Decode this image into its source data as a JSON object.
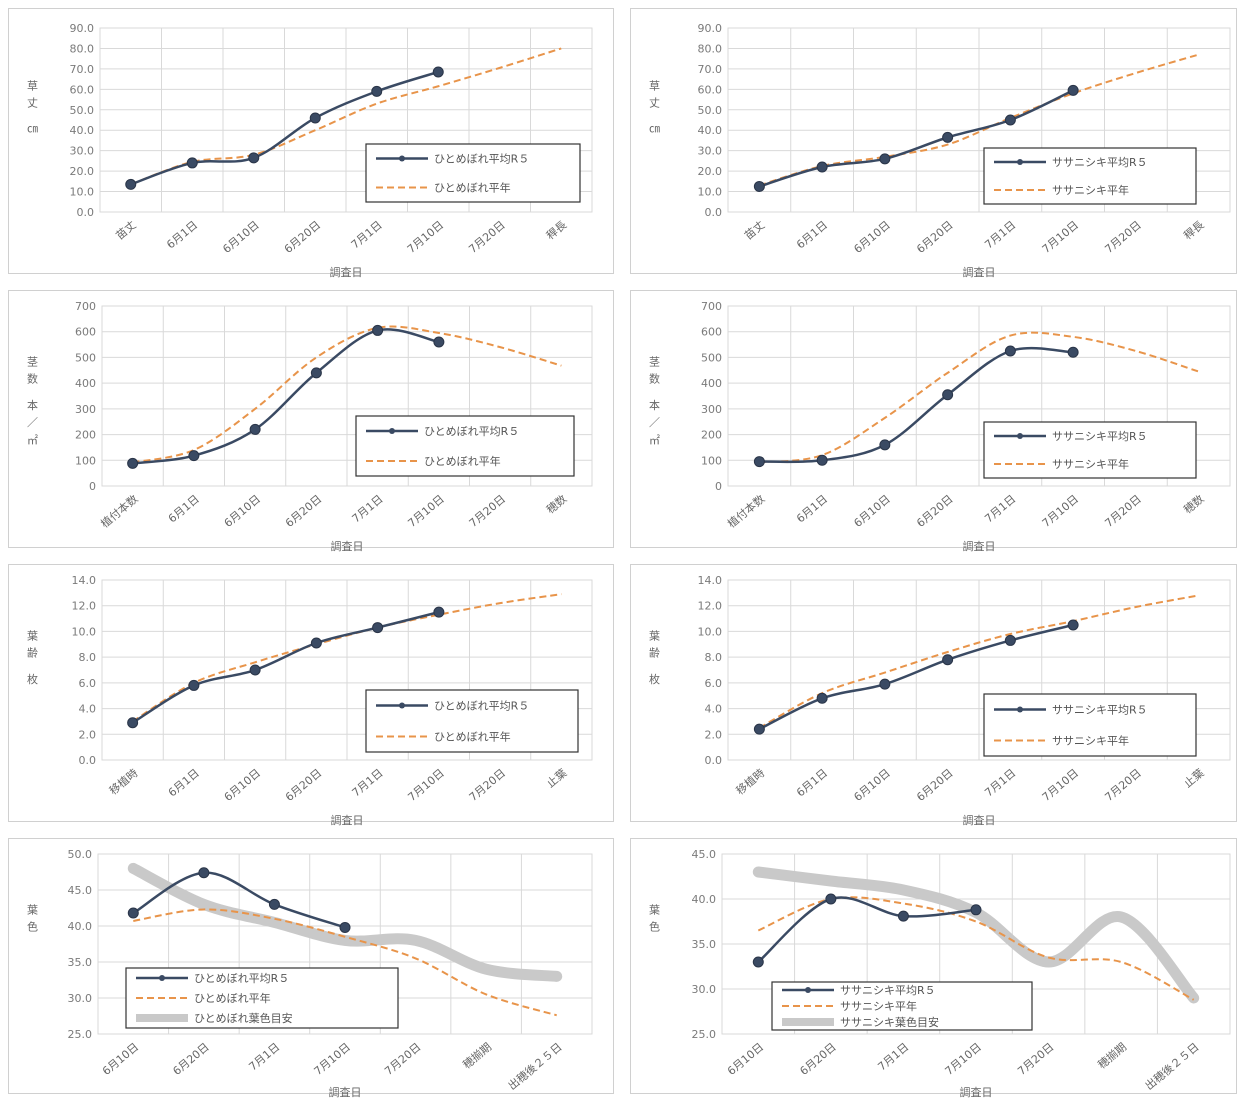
{
  "colors": {
    "measured": "#3a4a63",
    "normal": "#e8944a",
    "target": "#c9c9c9",
    "grid": "#d9d9d9",
    "axis_text": "#7a7a7a",
    "panel_border": "#d0d0d0"
  },
  "chart_data": [
    {
      "type": "line",
      "ylabel": "草丈 ㎝",
      "xlabel": "調査日",
      "categories": [
        "苗丈",
        "6月1日",
        "6月10日",
        "6月20日",
        "7月1日",
        "7月10日",
        "7月20日",
        "稈長"
      ],
      "ylim": [
        0,
        90
      ],
      "yticks": [
        "0.0",
        "10.0",
        "20.0",
        "30.0",
        "40.0",
        "50.0",
        "60.0",
        "70.0",
        "80.0",
        "90.0"
      ],
      "grid": true,
      "legend_position": "center-right",
      "series": [
        {
          "name": "ひとめぼれ平均R５",
          "style": "measured",
          "values": [
            13.5,
            24.0,
            26.5,
            46.0,
            59.0,
            68.5,
            null,
            null
          ]
        },
        {
          "name": "ひとめぼれ平年",
          "style": "normal",
          "values": [
            13.5,
            24.5,
            28.0,
            40.0,
            53.0,
            61.5,
            70.5,
            80.0
          ]
        }
      ]
    },
    {
      "type": "line",
      "ylabel": "草丈 ㎝",
      "xlabel": "調査日",
      "categories": [
        "苗丈",
        "6月1日",
        "6月10日",
        "6月20日",
        "7月1日",
        "7月10日",
        "7月20日",
        "稈長"
      ],
      "ylim": [
        0,
        90
      ],
      "yticks": [
        "0.0",
        "10.0",
        "20.0",
        "30.0",
        "40.0",
        "50.0",
        "60.0",
        "70.0",
        "80.0",
        "90.0"
      ],
      "grid": true,
      "legend_position": "lower-right",
      "series": [
        {
          "name": "ササニシキ平均R５",
          "style": "measured",
          "values": [
            12.5,
            22.0,
            26.0,
            36.5,
            45.0,
            59.5,
            null,
            null
          ]
        },
        {
          "name": "ササニシキ平年",
          "style": "normal",
          "values": [
            13.0,
            22.5,
            27.0,
            33.0,
            46.0,
            58.0,
            68.0,
            77.0
          ]
        }
      ]
    },
    {
      "type": "line",
      "ylabel": "茎数 本／㎡",
      "xlabel": "調査日",
      "categories": [
        "植付本数",
        "6月1日",
        "6月10日",
        "6月20日",
        "7月1日",
        "7月10日",
        "7月20日",
        "穂数"
      ],
      "ylim": [
        0,
        700
      ],
      "yticks": [
        "0",
        "100",
        "200",
        "300",
        "400",
        "500",
        "600",
        "700"
      ],
      "grid": true,
      "legend_position": "lower-right",
      "series": [
        {
          "name": "ひとめぼれ平均R５",
          "style": "measured",
          "values": [
            88,
            118,
            220,
            440,
            605,
            560,
            null,
            null
          ]
        },
        {
          "name": "ひとめぼれ平年",
          "style": "normal",
          "values": [
            92,
            140,
            300,
            500,
            615,
            595,
            540,
            468
          ]
        }
      ]
    },
    {
      "type": "line",
      "ylabel": "茎数 本／㎡",
      "xlabel": "調査日",
      "categories": [
        "植付本数",
        "6月1日",
        "6月10日",
        "6月20日",
        "7月1日",
        "7月10日",
        "7月20日",
        "穂数"
      ],
      "ylim": [
        0,
        700
      ],
      "yticks": [
        "0",
        "100",
        "200",
        "300",
        "400",
        "500",
        "600",
        "700"
      ],
      "grid": true,
      "legend_position": "lower-right",
      "series": [
        {
          "name": "ササニシキ平均R５",
          "style": "measured",
          "values": [
            95,
            100,
            160,
            355,
            525,
            520,
            null,
            null
          ]
        },
        {
          "name": "ササニシキ平年",
          "style": "normal",
          "values": [
            92,
            120,
            265,
            440,
            585,
            580,
            525,
            445
          ]
        }
      ]
    },
    {
      "type": "line",
      "ylabel": "葉齢 枚",
      "xlabel": "調査日",
      "categories": [
        "移植時",
        "6月1日",
        "6月10日",
        "6月20日",
        "7月1日",
        "7月10日",
        "7月20日",
        "止葉"
      ],
      "ylim": [
        0,
        14
      ],
      "yticks": [
        "0.0",
        "2.0",
        "4.0",
        "6.0",
        "8.0",
        "10.0",
        "12.0",
        "14.0"
      ],
      "grid": true,
      "legend_position": "lower-right",
      "series": [
        {
          "name": "ひとめぼれ平均R５",
          "style": "measured",
          "values": [
            2.9,
            5.8,
            7.0,
            9.1,
            10.3,
            11.5,
            null,
            null
          ]
        },
        {
          "name": "ひとめぼれ平年",
          "style": "normal",
          "values": [
            3.0,
            6.0,
            7.6,
            9.0,
            10.3,
            11.3,
            12.2,
            12.9
          ]
        }
      ]
    },
    {
      "type": "line",
      "ylabel": "葉齢 枚",
      "xlabel": "調査日",
      "categories": [
        "移植時",
        "6月1日",
        "6月10日",
        "6月20日",
        "7月1日",
        "7月10日",
        "7月20日",
        "止葉"
      ],
      "ylim": [
        0,
        14
      ],
      "yticks": [
        "0.0",
        "2.0",
        "4.0",
        "6.0",
        "8.0",
        "10.0",
        "12.0",
        "14.0"
      ],
      "grid": true,
      "legend_position": "lower-right",
      "series": [
        {
          "name": "ササニシキ平均R５",
          "style": "measured",
          "values": [
            2.4,
            4.8,
            5.9,
            7.8,
            9.3,
            10.5,
            null,
            null
          ]
        },
        {
          "name": "ササニシキ平年",
          "style": "normal",
          "values": [
            2.5,
            5.2,
            6.8,
            8.4,
            9.8,
            10.8,
            11.9,
            12.8
          ]
        }
      ]
    },
    {
      "type": "line",
      "ylabel": "葉色",
      "xlabel": "調査日",
      "categories": [
        "6月10日",
        "6月20日",
        "7月1日",
        "7月10日",
        "7月20日",
        "穂揃期",
        "出穂後２５日"
      ],
      "ylim": [
        25,
        50
      ],
      "yticks": [
        "25.0",
        "30.0",
        "35.0",
        "40.0",
        "45.0",
        "50.0"
      ],
      "grid": true,
      "legend_position": "lower-left",
      "series": [
        {
          "name": "ひとめぼれ平均R５",
          "style": "measured",
          "values": [
            41.8,
            47.4,
            43.0,
            39.8,
            null,
            null,
            null
          ]
        },
        {
          "name": "ひとめぼれ平年",
          "style": "normal",
          "values": [
            40.7,
            42.3,
            41.0,
            38.5,
            35.5,
            30.5,
            27.6
          ]
        },
        {
          "name": "ひとめぼれ葉色目安",
          "style": "target",
          "values": [
            48.0,
            43.0,
            40.5,
            38.0,
            38.0,
            34.0,
            33.0
          ]
        }
      ]
    },
    {
      "type": "line",
      "ylabel": "葉色",
      "xlabel": "調査日",
      "categories": [
        "6月10日",
        "6月20日",
        "7月1日",
        "7月10日",
        "7月20日",
        "穂揃期",
        "出穂後２５日"
      ],
      "ylim": [
        25,
        45
      ],
      "yticks": [
        "25.0",
        "30.0",
        "35.0",
        "40.0",
        "45.0"
      ],
      "grid": true,
      "legend_position": "lower-left",
      "series": [
        {
          "name": "ササニシキ平均R５",
          "style": "measured",
          "values": [
            33.0,
            40.0,
            38.1,
            38.8,
            null,
            null,
            null
          ]
        },
        {
          "name": "ササニシキ平年",
          "style": "normal",
          "values": [
            36.5,
            40.0,
            39.5,
            37.5,
            33.5,
            33.0,
            28.8
          ]
        },
        {
          "name": "ササニシキ葉色目安",
          "style": "target",
          "values": [
            43.0,
            42.0,
            41.0,
            38.5,
            33.0,
            38.0,
            29.0
          ]
        }
      ]
    }
  ]
}
